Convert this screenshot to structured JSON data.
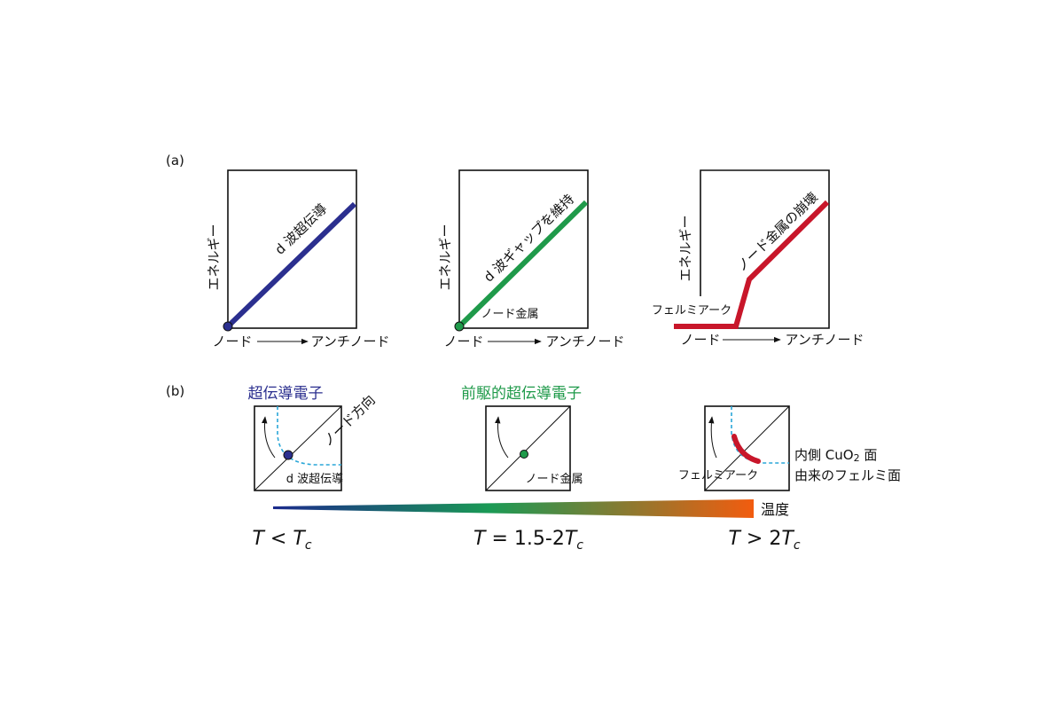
{
  "panel_a": {
    "label": "(a)",
    "plots": [
      {
        "y_axis": "エネルギー",
        "x_start": "ノード",
        "x_end": "アンチノード",
        "line_label": "d 波超伝導"
      },
      {
        "y_axis": "エネルギー",
        "x_start": "ノード",
        "x_end": "アンチノード",
        "line_label": "d 波ギャップを維持",
        "point_label": "ノード金属"
      },
      {
        "y_axis": "エネルギー",
        "x_start": "ノード",
        "x_end": "アンチノード",
        "line_label": "ノード金属の崩壊",
        "flat_label": "フェルミアーク"
      }
    ]
  },
  "panel_b": {
    "label": "(b)",
    "plots": [
      {
        "title": "超伝導電子",
        "direction_label": "ノード方向",
        "point_label": "d 波超伝導"
      },
      {
        "title": "前駆的超伝導電子",
        "point_label": "ノード金属"
      },
      {
        "arc_label": "フェルミアーク",
        "surface_label_1": [
          "内側 CuO",
          "2",
          " 面"
        ],
        "surface_label_2": "由来のフェルミ面"
      }
    ],
    "temperature_label": "温度",
    "conditions": [
      [
        "T",
        " < ",
        "T",
        "c"
      ],
      [
        "T",
        " = 1.5-2",
        "T",
        "c"
      ],
      [
        "T",
        " > 2",
        "T",
        "c"
      ]
    ]
  }
}
